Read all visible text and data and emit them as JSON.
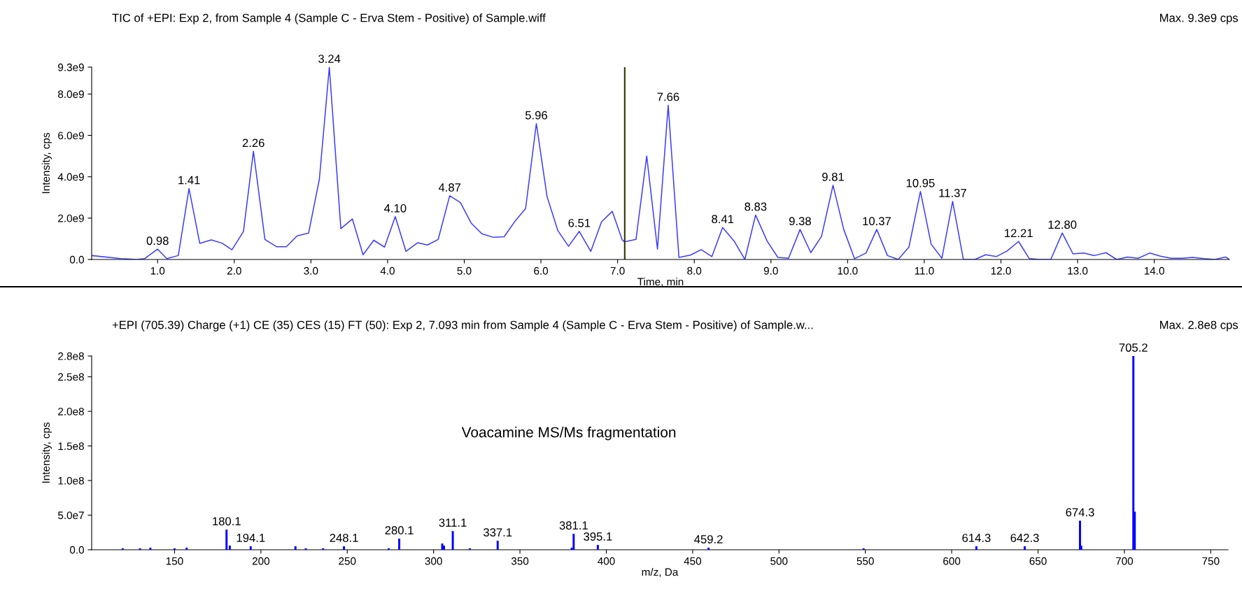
{
  "chart_data": [
    {
      "type": "line",
      "title": "TIC of +EPI: Exp 2, from Sample 4 (Sample C - Erva Stem - Positive) of Sample.wiff",
      "subtitle": "Max. 9.3e9 cps",
      "xlabel": "Time, min",
      "ylabel": "Intensity, cps",
      "color": "#3c3cff",
      "x": [
        0.14,
        0.52,
        0.73,
        0.83,
        1.0,
        1.12,
        1.27,
        1.41,
        1.55,
        1.7,
        1.84,
        1.97,
        2.12,
        2.25,
        2.4,
        2.55,
        2.68,
        2.82,
        2.97,
        3.11,
        3.24,
        3.39,
        3.54,
        3.68,
        3.82,
        3.96,
        4.1,
        4.24,
        4.39,
        4.52,
        4.66,
        4.81,
        4.95,
        5.09,
        5.23,
        5.38,
        5.52,
        5.66,
        5.8,
        5.94,
        6.08,
        6.22,
        6.36,
        6.5,
        6.65,
        6.79,
        6.93,
        7.06,
        7.09,
        7.24,
        7.38,
        7.52,
        7.66,
        7.8,
        7.95,
        8.09,
        8.23,
        8.37,
        8.52,
        8.66,
        8.8,
        8.95,
        9.09,
        9.23,
        9.38,
        9.52,
        9.66,
        9.81,
        9.95,
        10.09,
        10.24,
        10.38,
        10.52,
        10.66,
        10.8,
        10.95,
        11.09,
        11.23,
        11.37,
        11.51,
        11.66,
        11.8,
        11.94,
        12.08,
        12.23,
        12.37,
        12.51,
        12.65,
        12.8,
        12.94,
        13.08,
        13.22,
        13.37,
        13.51,
        13.65,
        13.79,
        13.94,
        14.08,
        14.22,
        14.36,
        14.5,
        14.65,
        14.79,
        14.93,
        14.98
      ],
      "values": [
        190000000.0,
        40000000.0,
        0,
        40000000.0,
        500000000.0,
        40000000.0,
        190000000.0,
        3430000000.0,
        780000000.0,
        950000000.0,
        790000000.0,
        470000000.0,
        1360000000.0,
        5230000000.0,
        970000000.0,
        620000000.0,
        620000000.0,
        1140000000.0,
        1280000000.0,
        3880000000.0,
        9300000000.0,
        1490000000.0,
        1960000000.0,
        230000000.0,
        930000000.0,
        600000000.0,
        2070000000.0,
        390000000.0,
        810000000.0,
        700000000.0,
        970000000.0,
        3080000000.0,
        2750000000.0,
        1760000000.0,
        1240000000.0,
        1070000000.0,
        1100000000.0,
        1840000000.0,
        2460000000.0,
        6570000000.0,
        3040000000.0,
        1400000000.0,
        640000000.0,
        1360000000.0,
        390000000.0,
        1820000000.0,
        2330000000.0,
        950000000.0,
        850000000.0,
        970000000.0,
        5000000000.0,
        500000000.0,
        7460000000.0,
        100000000.0,
        210000000.0,
        480000000.0,
        140000000.0,
        1550000000.0,
        890000000.0,
        0,
        2150000000.0,
        890000000.0,
        100000000.0,
        60000000.0,
        1450000000.0,
        330000000.0,
        1120000000.0,
        3590000000.0,
        1450000000.0,
        40000000.0,
        310000000.0,
        1450000000.0,
        190000000.0,
        0,
        600000000.0,
        3290000000.0,
        740000000.0,
        60000000.0,
        2810000000.0,
        0,
        0,
        230000000.0,
        140000000.0,
        410000000.0,
        870000000.0,
        40000000.0,
        0,
        0,
        1280000000.0,
        270000000.0,
        310000000.0,
        190000000.0,
        330000000.0,
        0,
        120000000.0,
        60000000.0,
        310000000.0,
        160000000.0,
        60000000.0,
        60000000.0,
        100000000.0,
        40000000.0,
        0,
        120000000.0,
        0
      ],
      "xlim": [
        0.14,
        14.98
      ],
      "ylim": [
        0,
        9300000000.0
      ],
      "xticks": [
        {
          "value": 1,
          "label": "1.0"
        },
        {
          "value": 2,
          "label": "2.0"
        },
        {
          "value": 3,
          "label": "3.0"
        },
        {
          "value": 4,
          "label": "4.0"
        },
        {
          "value": 5,
          "label": "5.0"
        },
        {
          "value": 6,
          "label": "6.0"
        },
        {
          "value": 7,
          "label": "7.0"
        },
        {
          "value": 8,
          "label": "8.0"
        },
        {
          "value": 9,
          "label": "9.0"
        },
        {
          "value": 10,
          "label": "10.0"
        },
        {
          "value": 11,
          "label": "11.0"
        },
        {
          "value": 12,
          "label": "12.0"
        },
        {
          "value": 13,
          "label": "13.0"
        },
        {
          "value": 14,
          "label": "14.0"
        }
      ],
      "yticks": [
        {
          "value": 0,
          "label": "0.0"
        },
        {
          "value": 2000000000.0,
          "label": "2.0e9"
        },
        {
          "value": 4000000000.0,
          "label": "4.0e9"
        },
        {
          "value": 6000000000.0,
          "label": "6.0e9"
        },
        {
          "value": 8000000000.0,
          "label": "8.0e9"
        },
        {
          "value": 9300000000.0,
          "label": "9.3e9"
        }
      ],
      "ref_lines": [
        {
          "axis": "x",
          "value": 7.093,
          "color": "#333300"
        }
      ],
      "annotations": [
        {
          "text": "0.98",
          "x": 1.0,
          "y": 500000000.0
        },
        {
          "text": "1.41",
          "x": 1.41,
          "y": 3430000000.0
        },
        {
          "text": "2.26",
          "x": 2.25,
          "y": 5230000000.0
        },
        {
          "text": "3.24",
          "x": 3.24,
          "y": 9300000000.0
        },
        {
          "text": "4.10",
          "x": 4.1,
          "y": 2070000000.0
        },
        {
          "text": "4.87",
          "x": 4.81,
          "y": 3080000000.0
        },
        {
          "text": "5.96",
          "x": 5.94,
          "y": 6570000000.0
        },
        {
          "text": "6.51",
          "x": 6.5,
          "y": 1360000000.0
        },
        {
          "text": "7.66",
          "x": 7.66,
          "y": 7460000000.0
        },
        {
          "text": "8.41",
          "x": 8.37,
          "y": 1550000000.0
        },
        {
          "text": "8.83",
          "x": 8.8,
          "y": 2150000000.0
        },
        {
          "text": "9.38",
          "x": 9.38,
          "y": 1450000000.0
        },
        {
          "text": "9.81",
          "x": 9.81,
          "y": 3590000000.0
        },
        {
          "text": "10.37",
          "x": 10.38,
          "y": 1450000000.0
        },
        {
          "text": "10.95",
          "x": 10.95,
          "y": 3290000000.0
        },
        {
          "text": "11.37",
          "x": 11.37,
          "y": 2810000000.0
        },
        {
          "text": "12.21",
          "x": 12.23,
          "y": 870000000.0
        },
        {
          "text": "12.80",
          "x": 12.8,
          "y": 1280000000.0
        }
      ]
    },
    {
      "type": "bar",
      "title": "+EPI (705.39) Charge (+1) CE (35) CES (15) FT (50): Exp 2, 7.093 min from Sample 4 (Sample C - Erva Stem - Positive) of Sample.w...",
      "subtitle": "Max. 2.8e8 cps",
      "xlabel": "m/z, Da",
      "ylabel": "Intensity, cps",
      "color": "#0000ff",
      "x": [
        120,
        130,
        136,
        150,
        157,
        180.1,
        182,
        194.1,
        220,
        226,
        236,
        248.1,
        274,
        280.1,
        305,
        306,
        311.1,
        321,
        337.1,
        380,
        381.1,
        395.1,
        459.2,
        549,
        614.3,
        642.3,
        674.3,
        675,
        705.2,
        706
      ],
      "values": [
        2000000.0,
        2000000.0,
        3000000.0,
        2000000.0,
        3000000.0,
        29000000.0,
        6000000.0,
        5000000.0,
        5000000.0,
        2000000.0,
        2000000.0,
        5000000.0,
        2000000.0,
        16000000.0,
        9000000.0,
        6000000.0,
        27000000.0,
        2000000.0,
        13000000.0,
        3000000.0,
        23000000.0,
        7000000.0,
        3000000.0,
        2000000.0,
        5000000.0,
        5000000.0,
        42000000.0,
        6000000.0,
        280000000.0,
        55000000.0
      ],
      "xlim": [
        102,
        760
      ],
      "ylim": [
        0,
        280000000.0
      ],
      "xticks": [
        150,
        200,
        250,
        300,
        350,
        400,
        450,
        500,
        550,
        600,
        650,
        700,
        750
      ],
      "yticks": [
        {
          "value": 0,
          "label": "0.0"
        },
        {
          "value": 50000000.0,
          "label": "5.0e7"
        },
        {
          "value": 100000000.0,
          "label": "1.0e8"
        },
        {
          "value": 150000000.0,
          "label": "1.5e8"
        },
        {
          "value": 200000000.0,
          "label": "2.0e8"
        },
        {
          "value": 250000000.0,
          "label": "2.5e8"
        },
        {
          "value": 280000000.0,
          "label": "2.8e8"
        }
      ],
      "annotations": [
        "Voacamine MS/Ms fragmentation",
        {
          "text": "180.1",
          "x": 180.1,
          "y": 29000000.0
        },
        {
          "text": "194.1",
          "x": 194.1,
          "y": 5000000.0
        },
        {
          "text": "248.1",
          "x": 248.1,
          "y": 5000000.0
        },
        {
          "text": "280.1",
          "x": 280.1,
          "y": 16000000.0
        },
        {
          "text": "311.1",
          "x": 311.1,
          "y": 27000000.0
        },
        {
          "text": "337.1",
          "x": 337.1,
          "y": 13000000.0
        },
        {
          "text": "381.1",
          "x": 381.1,
          "y": 23000000.0
        },
        {
          "text": "395.1",
          "x": 395.1,
          "y": 7000000.0
        },
        {
          "text": "459.2",
          "x": 459.2,
          "y": 3000000.0
        },
        {
          "text": "614.3",
          "x": 614.3,
          "y": 5000000.0
        },
        {
          "text": "642.3",
          "x": 642.3,
          "y": 5000000.0
        },
        {
          "text": "674.3",
          "x": 674.3,
          "y": 42000000.0
        },
        {
          "text": "705.2",
          "x": 705.2,
          "y": 280000000.0
        }
      ]
    }
  ]
}
